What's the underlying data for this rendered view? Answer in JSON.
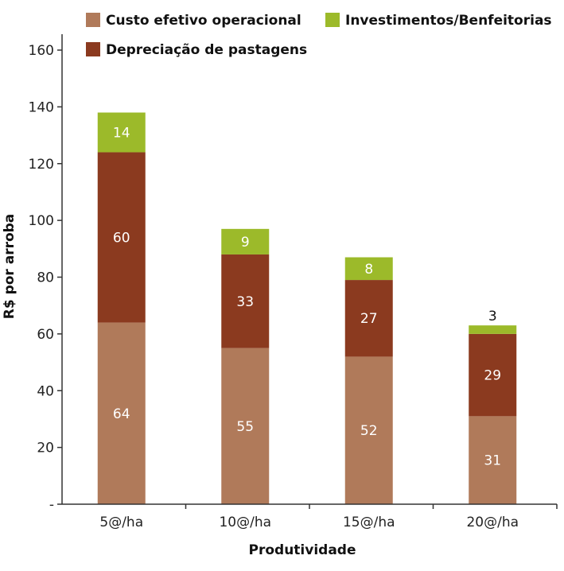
{
  "chart_data": {
    "type": "bar",
    "stacked": true,
    "categories": [
      "5@/ha",
      "10@/ha",
      "15@/ha",
      "20@/ha"
    ],
    "series": [
      {
        "name": "Custo efetivo operacional",
        "values": [
          64,
          55,
          52,
          31
        ],
        "color": "#b07a5a"
      },
      {
        "name": "Depreciação de pastagens",
        "values": [
          60,
          33,
          27,
          29
        ],
        "color": "#8b3a1f"
      },
      {
        "name": "Investimentos/Benfeitorias",
        "values": [
          14,
          9,
          8,
          3
        ],
        "color": "#9cba2a"
      }
    ],
    "xlabel": "Produtividade",
    "ylabel": "R$ por arroba",
    "ylim": [
      0,
      160
    ],
    "yticks": [
      0,
      20,
      40,
      60,
      80,
      100,
      120,
      140,
      160
    ],
    "ytick_labels": [
      "-",
      "20",
      "40",
      "60",
      "80",
      "100",
      "120",
      "140",
      "160"
    ],
    "grid": false,
    "legend_position": "top"
  }
}
